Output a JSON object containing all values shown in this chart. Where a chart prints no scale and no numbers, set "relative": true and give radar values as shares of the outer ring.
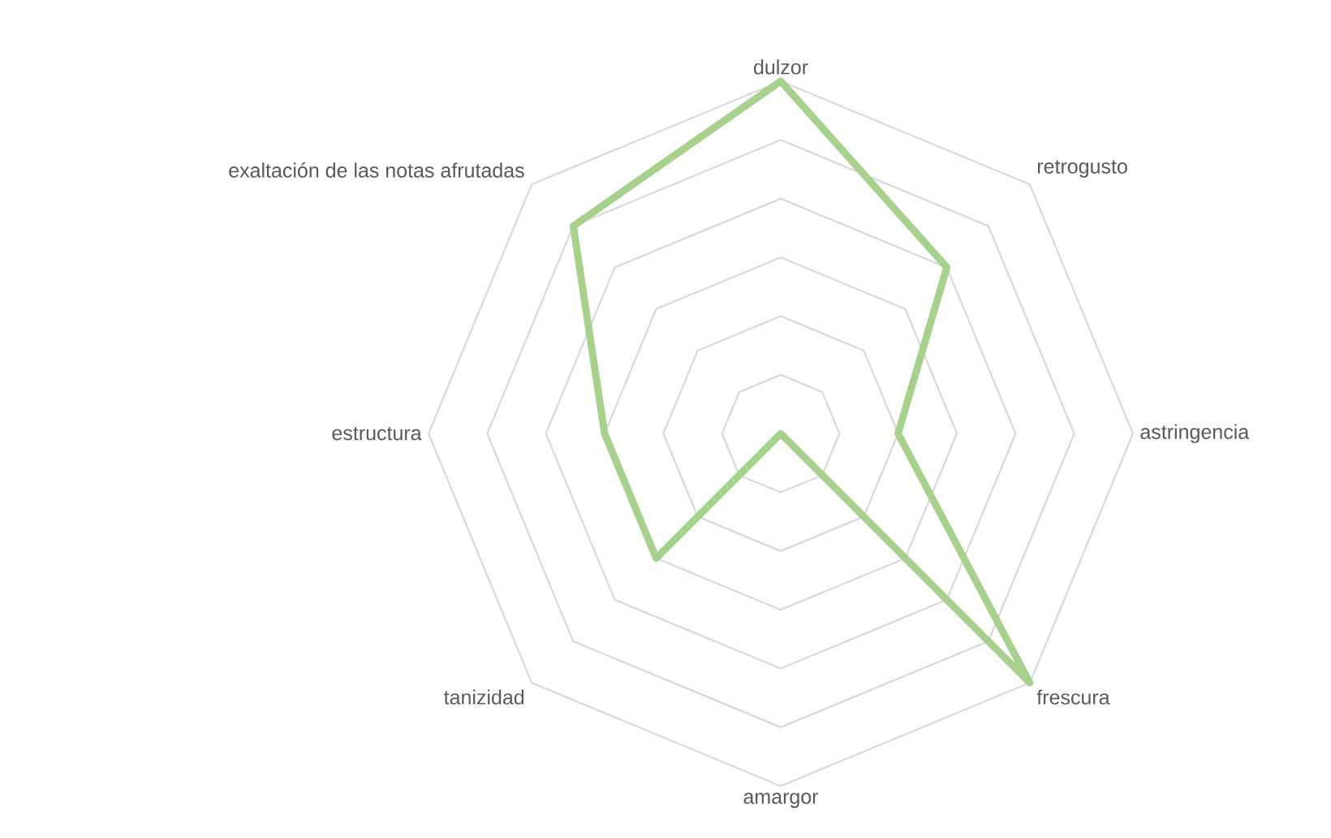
{
  "chart_data": {
    "type": "radar",
    "relative": true,
    "grid": true,
    "categories": [
      "dulzor",
      "retrogusto",
      "astringencia",
      "frescura",
      "amargor",
      "tanizidad",
      "estructura",
      "exaltación de las notas afrutadas"
    ],
    "series": [
      {
        "color": "#a9d18e",
        "values": [
          1,
          0.667,
          0.333,
          1,
          0,
          0.5,
          0.5,
          0.833
        ]
      }
    ]
  }
}
